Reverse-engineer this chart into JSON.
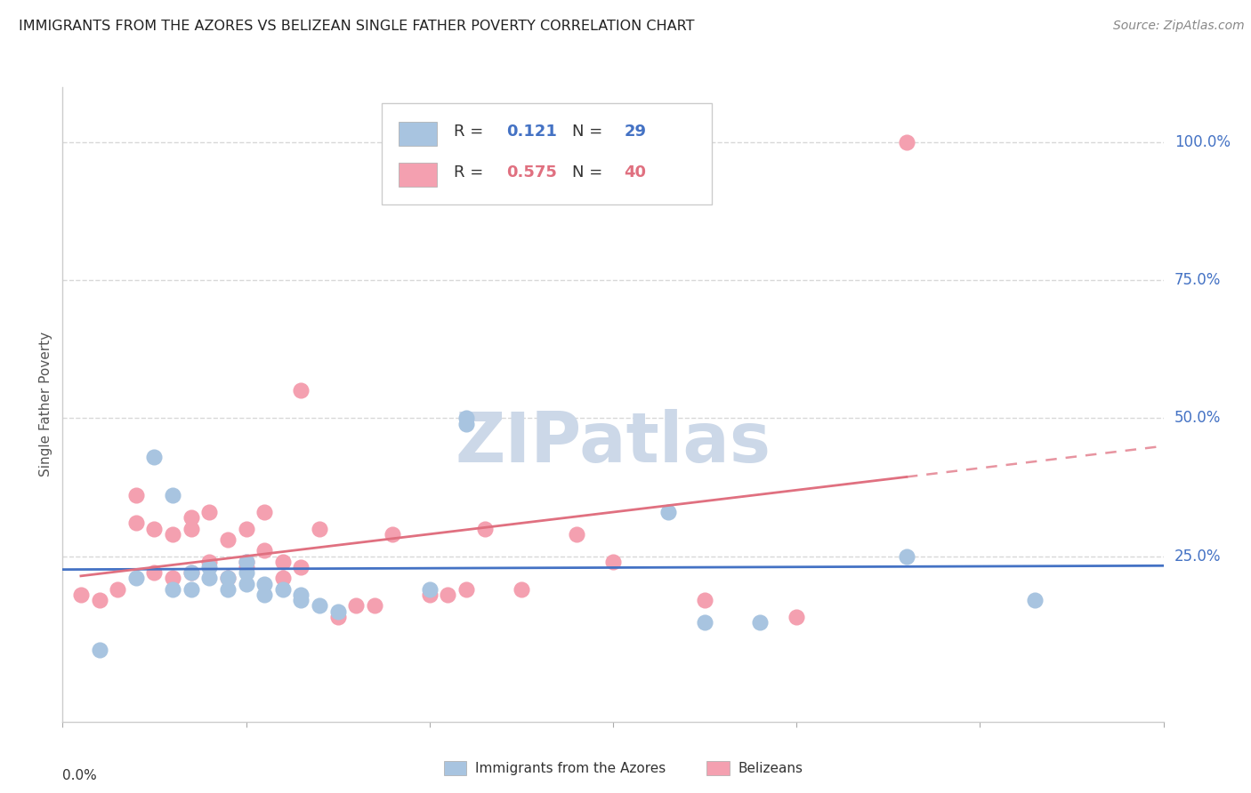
{
  "title": "IMMIGRANTS FROM THE AZORES VS BELIZEAN SINGLE FATHER POVERTY CORRELATION CHART",
  "source": "Source: ZipAtlas.com",
  "ylabel": "Single Father Poverty",
  "ytick_labels": [
    "100.0%",
    "75.0%",
    "50.0%",
    "25.0%"
  ],
  "ytick_values": [
    1.0,
    0.75,
    0.5,
    0.25
  ],
  "xlim": [
    0.0,
    0.06
  ],
  "ylim": [
    -0.05,
    1.1
  ],
  "watermark": "ZIPatlas",
  "legend_blue_R": "0.121",
  "legend_blue_N": "29",
  "legend_pink_R": "0.575",
  "legend_pink_N": "40",
  "blue_scatter_x": [
    0.002,
    0.004,
    0.005,
    0.006,
    0.006,
    0.007,
    0.007,
    0.008,
    0.008,
    0.009,
    0.009,
    0.01,
    0.01,
    0.01,
    0.011,
    0.011,
    0.012,
    0.013,
    0.013,
    0.014,
    0.015,
    0.02,
    0.022,
    0.022,
    0.033,
    0.035,
    0.038,
    0.046,
    0.053
  ],
  "blue_scatter_y": [
    0.08,
    0.21,
    0.43,
    0.36,
    0.19,
    0.19,
    0.22,
    0.21,
    0.23,
    0.19,
    0.21,
    0.2,
    0.22,
    0.24,
    0.18,
    0.2,
    0.19,
    0.18,
    0.17,
    0.16,
    0.15,
    0.19,
    0.5,
    0.49,
    0.33,
    0.13,
    0.13,
    0.25,
    0.17
  ],
  "pink_scatter_x": [
    0.001,
    0.002,
    0.003,
    0.004,
    0.004,
    0.005,
    0.005,
    0.006,
    0.006,
    0.007,
    0.007,
    0.007,
    0.008,
    0.008,
    0.009,
    0.009,
    0.01,
    0.01,
    0.01,
    0.011,
    0.011,
    0.012,
    0.012,
    0.013,
    0.013,
    0.014,
    0.015,
    0.016,
    0.017,
    0.018,
    0.02,
    0.021,
    0.022,
    0.023,
    0.025,
    0.028,
    0.03,
    0.035,
    0.04,
    0.046
  ],
  "pink_scatter_y": [
    0.18,
    0.17,
    0.19,
    0.31,
    0.36,
    0.22,
    0.3,
    0.21,
    0.29,
    0.22,
    0.3,
    0.32,
    0.24,
    0.33,
    0.21,
    0.28,
    0.23,
    0.24,
    0.3,
    0.26,
    0.33,
    0.21,
    0.24,
    0.55,
    0.23,
    0.3,
    0.14,
    0.16,
    0.16,
    0.29,
    0.18,
    0.18,
    0.19,
    0.3,
    0.19,
    0.29,
    0.24,
    0.17,
    0.14,
    1.0
  ],
  "blue_dot_color": "#a8c4e0",
  "pink_dot_color": "#f4a0b0",
  "blue_line_color": "#4472c4",
  "pink_line_color": "#e07080",
  "background_color": "#ffffff",
  "grid_color": "#d8d8d8",
  "bottom_legend_label1": "Immigrants from the Azores",
  "bottom_legend_label2": "Belizeans"
}
